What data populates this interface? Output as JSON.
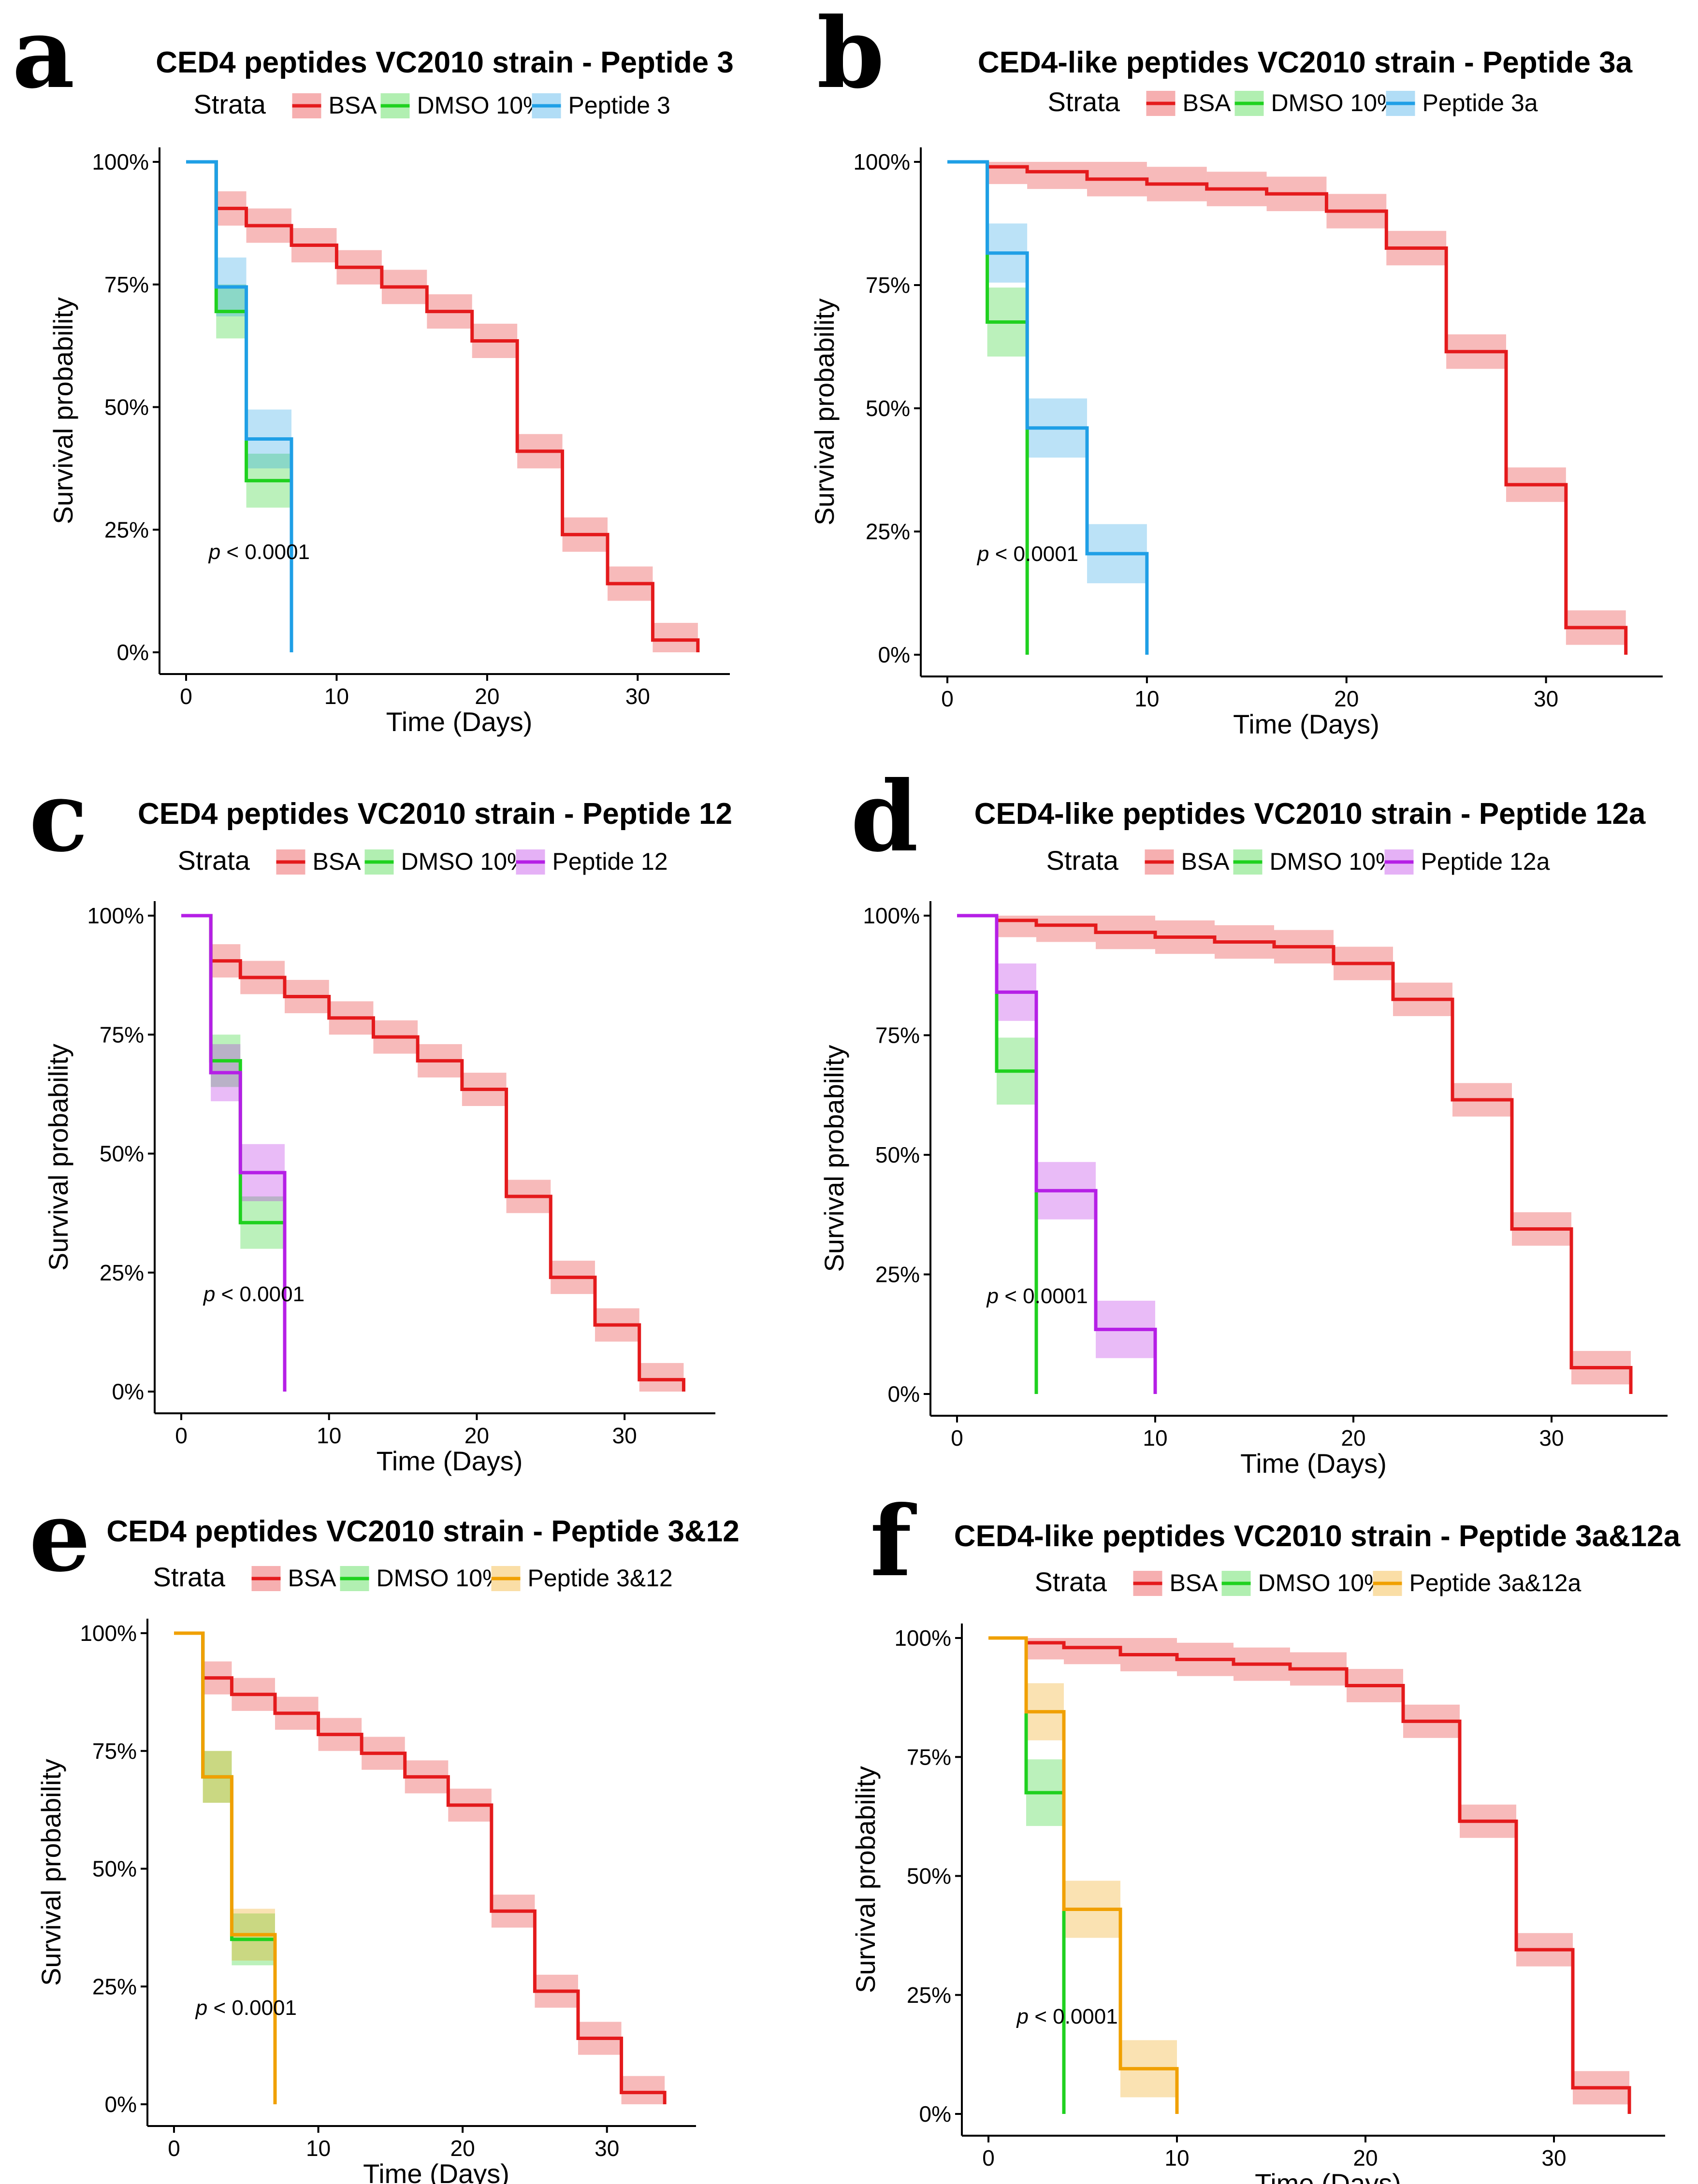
{
  "figure": {
    "axis_labels": {
      "x": "Time (Days)",
      "y": "Survival probability"
    },
    "legend_title": "Strata",
    "colors": {
      "BSA": "#e41a1c",
      "DMSO": "#1fd11f",
      "blue": "#1f9fe6",
      "purple": "#b51fe6",
      "orange": "#f0a000"
    }
  },
  "chart_data": [
    {
      "letter": "a",
      "type": "line",
      "title": "CED4 peptides VC2010 strain - Peptide 3",
      "xlabel": "Time (Days)",
      "ylabel": "Survival probability",
      "xlim": [
        0,
        35
      ],
      "ylim": [
        0,
        1
      ],
      "x_ticks": [
        "0",
        "10",
        "20",
        "30"
      ],
      "y_ticks": [
        "0%",
        "25%",
        "50%",
        "75%",
        "100%"
      ],
      "pvalue": "< 0.0001",
      "series": [
        {
          "name": "BSA",
          "color": "#e41a1c",
          "times": [
            0,
            2,
            4,
            7,
            10,
            13,
            16,
            19,
            22,
            25,
            28,
            31,
            34
          ],
          "surv": [
            1.0,
            0.905,
            0.87,
            0.83,
            0.785,
            0.745,
            0.695,
            0.635,
            0.41,
            0.24,
            0.14,
            0.025,
            0.0
          ],
          "band": 0.035
        },
        {
          "name": "DMSO 10%",
          "color": "#1fd11f",
          "times": [
            0,
            2,
            4,
            7
          ],
          "surv": [
            1.0,
            0.695,
            0.35,
            0.0
          ],
          "band": 0.055
        },
        {
          "name": "Peptide 3",
          "color": "#1f9fe6",
          "times": [
            0,
            2,
            4,
            7
          ],
          "surv": [
            1.0,
            0.745,
            0.435,
            0.0
          ],
          "band": 0.06
        }
      ]
    },
    {
      "letter": "b",
      "type": "line",
      "title": "CED4-like peptides VC2010 strain - Peptide 3a",
      "xlabel": "Time (Days)",
      "ylabel": "Survival probability",
      "xlim": [
        0,
        35
      ],
      "ylim": [
        0,
        1
      ],
      "x_ticks": [
        "0",
        "10",
        "20",
        "30"
      ],
      "y_ticks": [
        "0%",
        "25%",
        "50%",
        "75%",
        "100%"
      ],
      "pvalue": "< 0.0001",
      "series": [
        {
          "name": "BSA",
          "color": "#e41a1c",
          "times": [
            0,
            2,
            4,
            7,
            10,
            13,
            16,
            19,
            22,
            25,
            28,
            31,
            34
          ],
          "surv": [
            1.0,
            0.99,
            0.98,
            0.965,
            0.955,
            0.945,
            0.935,
            0.9,
            0.825,
            0.615,
            0.345,
            0.055,
            0.0
          ],
          "band": 0.035
        },
        {
          "name": "DMSO 10%",
          "color": "#1fd11f",
          "times": [
            0,
            2,
            4
          ],
          "surv": [
            1.0,
            0.675,
            0.0
          ],
          "band": 0.07
        },
        {
          "name": "Peptide 3a",
          "color": "#1f9fe6",
          "times": [
            0,
            2,
            4,
            7,
            10
          ],
          "surv": [
            1.0,
            0.815,
            0.46,
            0.205,
            0.0
          ],
          "band": 0.06
        }
      ]
    },
    {
      "letter": "c",
      "type": "line",
      "title": "CED4 peptides VC2010 strain - Peptide 12",
      "xlabel": "Time (Days)",
      "ylabel": "Survival probability",
      "xlim": [
        0,
        35
      ],
      "ylim": [
        0,
        1
      ],
      "x_ticks": [
        "0",
        "10",
        "20",
        "30"
      ],
      "y_ticks": [
        "0%",
        "25%",
        "50%",
        "75%",
        "100%"
      ],
      "pvalue": "< 0.0001",
      "series": [
        {
          "name": "BSA",
          "color": "#e41a1c",
          "times": [
            0,
            2,
            4,
            7,
            10,
            13,
            16,
            19,
            22,
            25,
            28,
            31,
            34
          ],
          "surv": [
            1.0,
            0.905,
            0.87,
            0.83,
            0.785,
            0.745,
            0.695,
            0.635,
            0.41,
            0.24,
            0.14,
            0.025,
            0.0
          ],
          "band": 0.035
        },
        {
          "name": "DMSO 10%",
          "color": "#1fd11f",
          "times": [
            0,
            2,
            4,
            7
          ],
          "surv": [
            1.0,
            0.695,
            0.355,
            0.0
          ],
          "band": 0.055
        },
        {
          "name": "Peptide 12",
          "color": "#b51fe6",
          "times": [
            0,
            2,
            4,
            7
          ],
          "surv": [
            1.0,
            0.67,
            0.46,
            0.0
          ],
          "band": 0.06
        }
      ]
    },
    {
      "letter": "d",
      "type": "line",
      "title": "CED4-like peptides VC2010 strain - Peptide 12a",
      "xlabel": "Time (Days)",
      "ylabel": "Survival probability",
      "xlim": [
        0,
        35
      ],
      "ylim": [
        0,
        1
      ],
      "x_ticks": [
        "0",
        "10",
        "20",
        "30"
      ],
      "y_ticks": [
        "0%",
        "25%",
        "50%",
        "75%",
        "100%"
      ],
      "pvalue": "< 0.0001",
      "series": [
        {
          "name": "BSA",
          "color": "#e41a1c",
          "times": [
            0,
            2,
            4,
            7,
            10,
            13,
            16,
            19,
            22,
            25,
            28,
            31,
            34
          ],
          "surv": [
            1.0,
            0.99,
            0.98,
            0.965,
            0.955,
            0.945,
            0.935,
            0.9,
            0.825,
            0.615,
            0.345,
            0.055,
            0.0
          ],
          "band": 0.035
        },
        {
          "name": "DMSO 10%",
          "color": "#1fd11f",
          "times": [
            0,
            2,
            4
          ],
          "surv": [
            1.0,
            0.675,
            0.0
          ],
          "band": 0.07
        },
        {
          "name": "Peptide 12a",
          "color": "#b51fe6",
          "times": [
            0,
            2,
            4,
            7,
            10
          ],
          "surv": [
            1.0,
            0.84,
            0.425,
            0.135,
            0.0
          ],
          "band": 0.06
        }
      ]
    },
    {
      "letter": "e",
      "type": "line",
      "title": "CED4 peptides VC2010 strain - Peptide 3&12",
      "xlabel": "Time (Days)",
      "ylabel": "Survival probability",
      "xlim": [
        0,
        35
      ],
      "ylim": [
        0,
        1
      ],
      "x_ticks": [
        "0",
        "10",
        "20",
        "30"
      ],
      "y_ticks": [
        "0%",
        "25%",
        "50%",
        "75%",
        "100%"
      ],
      "pvalue": "< 0.0001",
      "series": [
        {
          "name": "BSA",
          "color": "#e41a1c",
          "times": [
            0,
            2,
            4,
            7,
            10,
            13,
            16,
            19,
            22,
            25,
            28,
            31,
            34
          ],
          "surv": [
            1.0,
            0.905,
            0.87,
            0.83,
            0.785,
            0.745,
            0.695,
            0.635,
            0.41,
            0.24,
            0.14,
            0.025,
            0.0
          ],
          "band": 0.035
        },
        {
          "name": "DMSO 10%",
          "color": "#1fd11f",
          "times": [
            0,
            2,
            4,
            7
          ],
          "surv": [
            1.0,
            0.695,
            0.35,
            0.0
          ],
          "band": 0.055
        },
        {
          "name": "Peptide 3&12",
          "color": "#f0a000",
          "times": [
            0,
            2,
            4,
            7
          ],
          "surv": [
            1.0,
            0.695,
            0.36,
            0.0
          ],
          "band": 0.055
        }
      ]
    },
    {
      "letter": "f",
      "type": "line",
      "title": "CED4-like peptides VC2010 strain - Peptide 3a&12a",
      "xlabel": "Time (Days)",
      "ylabel": "Survival probability",
      "xlim": [
        0,
        35
      ],
      "ylim": [
        0,
        1
      ],
      "x_ticks": [
        "0",
        "10",
        "20",
        "30"
      ],
      "y_ticks": [
        "0%",
        "25%",
        "50%",
        "75%",
        "100%"
      ],
      "pvalue": "< 0.0001",
      "series": [
        {
          "name": "BSA",
          "color": "#e41a1c",
          "times": [
            0,
            2,
            4,
            7,
            10,
            13,
            16,
            19,
            22,
            25,
            28,
            31,
            34
          ],
          "surv": [
            1.0,
            0.99,
            0.98,
            0.965,
            0.955,
            0.945,
            0.935,
            0.9,
            0.825,
            0.615,
            0.345,
            0.055,
            0.0
          ],
          "band": 0.035
        },
        {
          "name": "DMSO 10%",
          "color": "#1fd11f",
          "times": [
            0,
            2,
            4
          ],
          "surv": [
            1.0,
            0.675,
            0.0
          ],
          "band": 0.07
        },
        {
          "name": "Peptide 3a&12a",
          "color": "#f0a000",
          "times": [
            0,
            2,
            4,
            7,
            10
          ],
          "surv": [
            1.0,
            0.845,
            0.43,
            0.095,
            0.0
          ],
          "band": 0.06
        }
      ]
    }
  ]
}
